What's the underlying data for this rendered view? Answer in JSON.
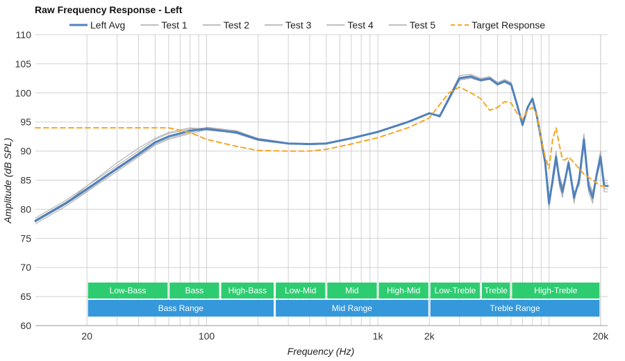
{
  "chart_data": {
    "type": "line",
    "title": "Raw Frequency Response - Left",
    "xlabel": "Frequency (Hz)",
    "ylabel": "Amplitude (dB SPL)",
    "x_scale": "log",
    "xlim": [
      10,
      22000
    ],
    "ylim": [
      60,
      110
    ],
    "grid": true,
    "legend_position": "top",
    "y_ticks": [
      60,
      65,
      70,
      75,
      80,
      85,
      90,
      95,
      100,
      105,
      110
    ],
    "x_ticks": [
      {
        "value": 20,
        "label": "20"
      },
      {
        "value": 100,
        "label": "100"
      },
      {
        "value": 1000,
        "label": "1k"
      },
      {
        "value": 2000,
        "label": "2k"
      },
      {
        "value": 20000,
        "label": "20k"
      }
    ],
    "x": [
      10,
      15,
      20,
      30,
      40,
      50,
      60,
      80,
      100,
      150,
      200,
      300,
      400,
      500,
      700,
      1000,
      1500,
      2000,
      2300,
      2600,
      3000,
      3500,
      4000,
      4500,
      5000,
      5500,
      6000,
      6500,
      7000,
      7500,
      8000,
      8500,
      9000,
      9500,
      10000,
      10500,
      11000,
      11500,
      12000,
      12500,
      13000,
      14000,
      15000,
      16000,
      17000,
      18000,
      19000,
      20000,
      21000,
      22000
    ],
    "series": [
      {
        "name": "Left Avg",
        "color": "#4f81bd",
        "style": "solid",
        "width": 3,
        "values": [
          78,
          81,
          83.5,
          87,
          89.5,
          91.5,
          92.5,
          93.5,
          93.8,
          93.2,
          92,
          91.3,
          91.2,
          91.3,
          92.2,
          93.3,
          95,
          96.5,
          96,
          99,
          102.5,
          102.8,
          102.2,
          102.5,
          101.5,
          102,
          101.5,
          98,
          94.5,
          97.5,
          99,
          96,
          92,
          88,
          81,
          85,
          89,
          85,
          83,
          85.5,
          88,
          82,
          85,
          92,
          84,
          82,
          86,
          89,
          84,
          84
        ]
      },
      {
        "name": "Test 1",
        "color": "#a8a8a8",
        "style": "solid",
        "width": 1,
        "values": [
          78.5,
          81.5,
          84,
          87.5,
          90,
          92,
          93,
          93.8,
          94,
          93.3,
          92,
          91.2,
          91.1,
          91.2,
          92.1,
          93.2,
          95,
          96.4,
          96.2,
          99.3,
          103,
          103.2,
          102.5,
          102.8,
          101.8,
          102.3,
          101.8,
          98.2,
          94.8,
          97.7,
          99.2,
          96.2,
          92.2,
          87.5,
          80,
          86,
          90,
          84,
          82,
          86,
          88.5,
          81,
          86,
          93,
          83,
          81,
          86.5,
          90,
          83,
          83
        ]
      },
      {
        "name": "Test 2",
        "color": "#a8a8a8",
        "style": "solid",
        "width": 1,
        "values": [
          77.5,
          80.5,
          83,
          86.5,
          89,
          91,
          92,
          93,
          93.7,
          93.4,
          92.2,
          91.4,
          91.3,
          91.4,
          92.3,
          93.4,
          95.1,
          96.6,
          95.8,
          98.7,
          102.2,
          102.5,
          102,
          102.3,
          101.3,
          101.8,
          101.2,
          97.8,
          94.2,
          97.3,
          98.8,
          95.8,
          91.8,
          88.5,
          82,
          84,
          88,
          86,
          84,
          85,
          87.5,
          83,
          84,
          91,
          85,
          83,
          85.5,
          88,
          85,
          85
        ]
      },
      {
        "name": "Test 3",
        "color": "#a8a8a8",
        "style": "solid",
        "width": 1,
        "values": [
          78,
          81,
          84,
          88,
          90.5,
          92.2,
          93.2,
          94,
          93.8,
          93,
          91.8,
          91.2,
          91.1,
          91.2,
          92.1,
          93.2,
          94.9,
          96.4,
          96.1,
          99.2,
          102.7,
          103,
          102.3,
          102.6,
          101.6,
          102.1,
          101.6,
          98.1,
          94.6,
          97.6,
          99.1,
          96.1,
          92.1,
          88,
          80.5,
          85.5,
          89.5,
          84.5,
          82.5,
          86,
          88.2,
          81.5,
          85.5,
          92.5,
          83.5,
          81.5,
          86.2,
          89.5,
          83.5,
          83.5
        ]
      },
      {
        "name": "Test 4",
        "color": "#a8a8a8",
        "style": "solid",
        "width": 1,
        "values": [
          77.8,
          80.8,
          83.2,
          86.8,
          89.2,
          91.2,
          92.2,
          93.2,
          94.1,
          93.5,
          92.1,
          91.3,
          91.2,
          91.3,
          92.2,
          93.3,
          95,
          96.5,
          96,
          98.9,
          102.4,
          102.7,
          102.1,
          102.4,
          101.4,
          101.9,
          101.4,
          97.9,
          94.4,
          97.4,
          98.9,
          95.9,
          91.9,
          88.2,
          81.5,
          84.5,
          88.5,
          85.5,
          83.5,
          85.2,
          87.8,
          82.5,
          84.5,
          91.5,
          84.5,
          82.5,
          85.8,
          88.5,
          84.5,
          84.5
        ]
      },
      {
        "name": "Test 5",
        "color": "#a8a8a8",
        "style": "solid",
        "width": 1,
        "values": [
          78.2,
          81.2,
          83.6,
          87.2,
          89.6,
          91.6,
          92.6,
          93.6,
          93.6,
          93.1,
          91.9,
          91.3,
          91.2,
          91.3,
          92.2,
          93.3,
          95,
          96.5,
          96,
          99,
          102.6,
          102.9,
          102.2,
          102.5,
          101.5,
          102,
          101.5,
          98,
          94.5,
          97.5,
          99,
          96,
          92,
          88,
          81.2,
          85.2,
          89.2,
          85.2,
          83.2,
          85.5,
          88,
          82.2,
          85.2,
          92.2,
          84.2,
          82.2,
          86,
          89,
          84,
          84
        ]
      },
      {
        "name": "Target Response",
        "color": "#f5a623",
        "style": "dashed",
        "width": 2,
        "values": [
          94,
          94,
          94,
          94,
          94,
          94,
          94,
          93.2,
          92,
          90.8,
          90.1,
          90,
          90,
          90.3,
          91.2,
          92.3,
          94,
          95.7,
          98,
          100,
          101,
          100,
          99,
          97,
          97.5,
          98.5,
          98.3,
          96.5,
          95.5,
          97,
          97.5,
          96.3,
          92,
          89,
          87,
          92,
          94,
          91,
          88.5,
          88.5,
          89,
          88,
          87,
          86,
          85.5,
          85,
          84.5,
          84,
          84,
          83.5
        ]
      }
    ],
    "bands_top": [
      {
        "label": "Low-Bass",
        "from": 20,
        "to": 60
      },
      {
        "label": "Bass",
        "from": 60,
        "to": 120
      },
      {
        "label": "High-Bass",
        "from": 120,
        "to": 250
      },
      {
        "label": "Low-Mid",
        "from": 250,
        "to": 500
      },
      {
        "label": "Mid",
        "from": 500,
        "to": 1000
      },
      {
        "label": "High-Mid",
        "from": 1000,
        "to": 2000
      },
      {
        "label": "Low-Treble",
        "from": 2000,
        "to": 4000
      },
      {
        "label": "Treble",
        "from": 4000,
        "to": 6000
      },
      {
        "label": "High-Treble",
        "from": 6000,
        "to": 20000
      }
    ],
    "bands_bottom": [
      {
        "label": "Bass Range",
        "from": 20,
        "to": 250
      },
      {
        "label": "Mid Range",
        "from": 250,
        "to": 2000
      },
      {
        "label": "Treble Range",
        "from": 2000,
        "to": 20000
      }
    ],
    "band_colors": {
      "top": "#2ecc71",
      "bottom": "#3498db"
    }
  }
}
